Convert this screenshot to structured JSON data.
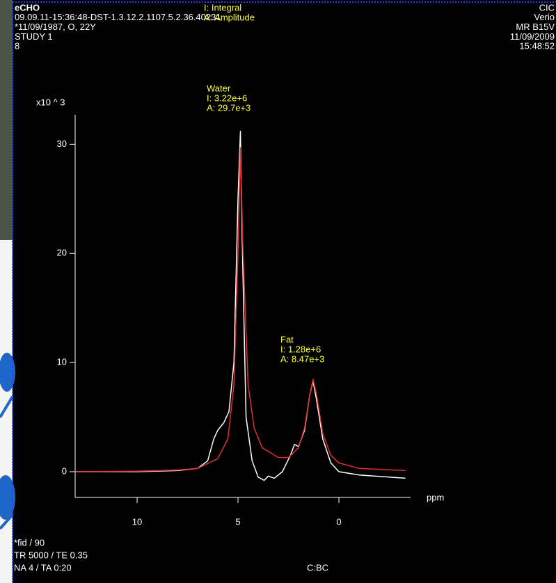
{
  "header": {
    "left": [
      "eCHO",
      "09.09.11-15:36:48-DST-1.3.12.2.1107.5.2.36.40231",
      "*11/09/1987, O, 22Y",
      "STUDY 1",
      "8"
    ],
    "legend": [
      "I: Integral",
      "A: Amplitude"
    ],
    "right": [
      "CIC",
      "Verio",
      "MR B15V",
      "11/09/2009",
      "15:48:52"
    ]
  },
  "chart_data": {
    "type": "line",
    "y_label": "x10 ^ 3",
    "x_label": "ppm",
    "xlim": [
      13.07,
      -3.55
    ],
    "ylim": [
      -2.36,
      32.7
    ],
    "xticks": [
      10,
      5,
      0
    ],
    "yticks": [
      0,
      10,
      20,
      30
    ],
    "series": [
      {
        "color": "#ffffff",
        "x": [
          13.07,
          10,
          8,
          7,
          6.5,
          6.2,
          6.0,
          5.7,
          5.45,
          5.2,
          5.0,
          4.88,
          4.8,
          4.6,
          4.3,
          4.0,
          3.7,
          3.5,
          3.2,
          2.8,
          2.4,
          2.2,
          2.0,
          1.7,
          1.45,
          1.28,
          1.1,
          0.8,
          0.4,
          0,
          -1,
          -3.3
        ],
        "values": [
          0,
          0,
          0.1,
          0.3,
          1,
          3,
          3.8,
          4.5,
          5.5,
          10,
          25,
          31.2,
          22,
          5,
          1,
          -0.5,
          -0.8,
          -0.4,
          -0.6,
          0,
          1.5,
          2.5,
          2.3,
          3.8,
          7,
          8.3,
          6.5,
          3,
          0.8,
          0,
          -0.3,
          -0.6
        ]
      },
      {
        "color": "#e03030",
        "x": [
          13.07,
          10,
          8,
          7,
          6,
          5.5,
          5.2,
          5.0,
          4.88,
          4.75,
          4.5,
          4.2,
          3.8,
          3.0,
          2.5,
          2.0,
          1.7,
          1.45,
          1.28,
          1.1,
          0.8,
          0.4,
          0,
          -1,
          -3.3
        ],
        "values": [
          0,
          0.05,
          0.15,
          0.3,
          1.2,
          3,
          8,
          20,
          29.7,
          20,
          8,
          4,
          2.2,
          1.3,
          1.3,
          2.2,
          4,
          7,
          8.47,
          7,
          3.5,
          1.5,
          0.8,
          0.3,
          0.1
        ]
      }
    ],
    "annotations": [
      {
        "label": "Water",
        "lines": [
          "I: 3.22e+6",
          "A: 29.7e+3"
        ]
      },
      {
        "label": "Fat",
        "lines": [
          "I: 1.28e+6",
          "A: 8.47e+3"
        ]
      }
    ]
  },
  "footer": {
    "left": [
      "*fid / 90",
      "TR 5000 / TE 0.35",
      "NA 4 / TA 0:20"
    ],
    "center": "C:BC"
  }
}
